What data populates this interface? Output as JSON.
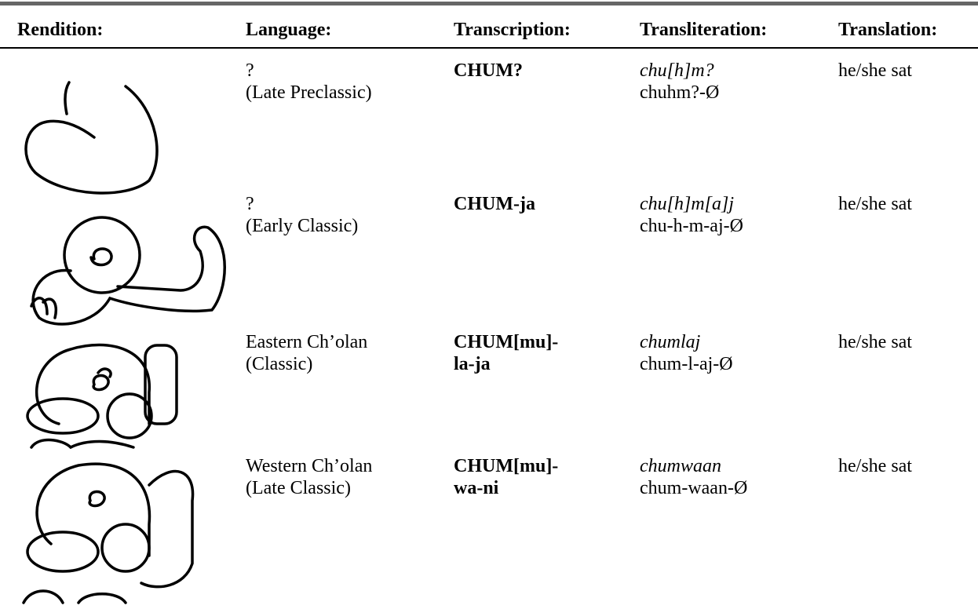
{
  "table": {
    "header": [
      "Rendition:",
      "Language:",
      "Transcription:",
      "Transliteration:",
      "Translation:"
    ],
    "rows": [
      {
        "language": [
          "?",
          "(Late Preclassic)"
        ],
        "transcription": [
          "CHUM?"
        ],
        "transliteration": [
          "chu[h]m?",
          "chuhm?-Ø"
        ],
        "translation": "he/she sat"
      },
      {
        "language": [
          "?",
          "(Early Classic)"
        ],
        "transcription": [
          "CHUM-ja"
        ],
        "transliteration": [
          "chu[h]m[a]j",
          "chu-h-m-aj-Ø"
        ],
        "translation": "he/she sat"
      },
      {
        "language": [
          "Eastern Ch’olan",
          "(Classic)"
        ],
        "transcription": [
          "CHUM[mu]-",
          "la-ja"
        ],
        "transliteration": [
          "chumlaj",
          "chum-l-aj-Ø"
        ],
        "translation": "he/she sat"
      },
      {
        "language": [
          "Western Ch’olan",
          "(Late Classic)"
        ],
        "transcription": [
          "CHUM[mu]-",
          "wa-ni"
        ],
        "transliteration": [
          "chumwaan",
          "chum-waan-Ø"
        ],
        "translation": "he/she sat"
      }
    ]
  }
}
